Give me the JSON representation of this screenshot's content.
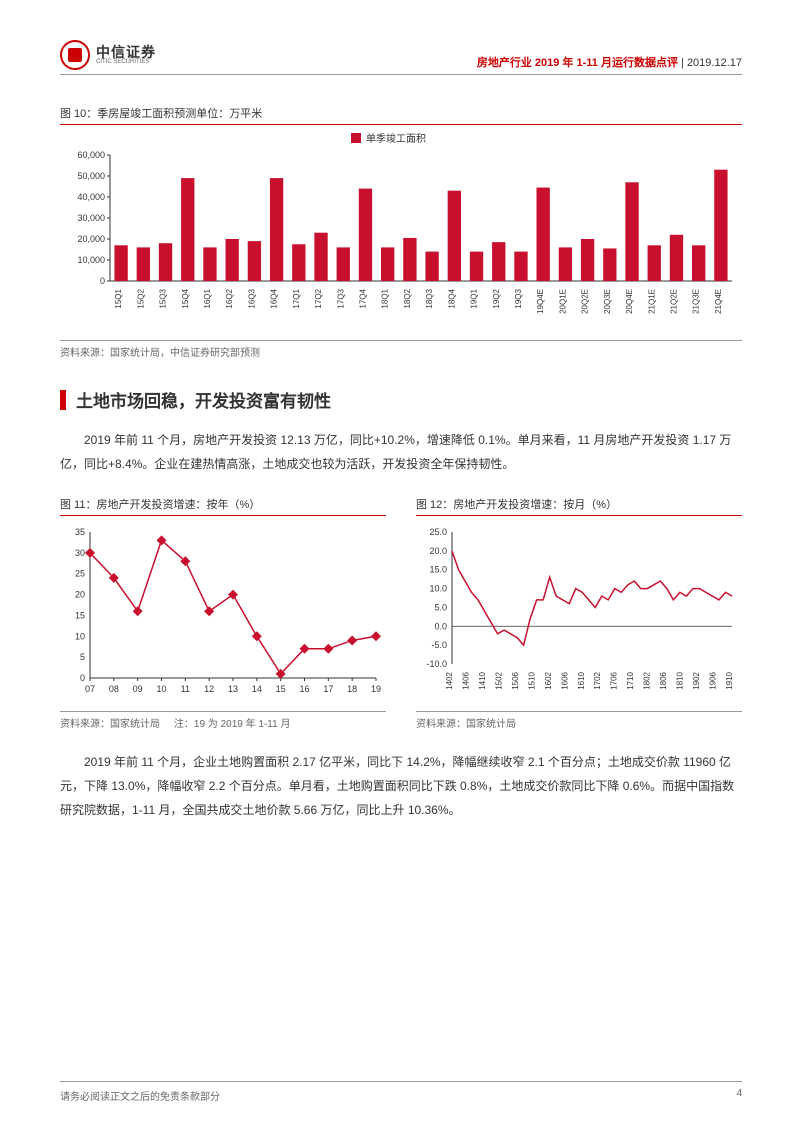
{
  "header": {
    "logo_cn": "中信证券",
    "logo_en": "CITIC SECURITIES",
    "title": "房地产行业 2019 年 1-11 月运行数据点评",
    "date": "2019.12.17"
  },
  "chart10": {
    "title": "图 10：季房屋竣工面积预测单位：万平米",
    "legend": "单季竣工面积",
    "source": "资料来源：国家统计局，中信证券研究部预测",
    "categories": [
      "15Q1",
      "15Q2",
      "15Q3",
      "15Q4",
      "16Q1",
      "16Q2",
      "16Q3",
      "16Q4",
      "17Q1",
      "17Q2",
      "17Q3",
      "17Q4",
      "18Q1",
      "18Q2",
      "18Q3",
      "18Q4",
      "19Q1",
      "19Q2",
      "19Q3",
      "19Q4E",
      "20Q1E",
      "20Q2E",
      "20Q3E",
      "20Q4E",
      "21Q1E",
      "21Q2E",
      "21Q3E",
      "21Q4E"
    ],
    "values": [
      17000,
      16000,
      18000,
      49000,
      16000,
      20000,
      19000,
      49000,
      17500,
      23000,
      16000,
      44000,
      16000,
      20500,
      14000,
      43000,
      14000,
      18500,
      14000,
      44500,
      16000,
      20000,
      15500,
      47000,
      17000,
      22000,
      17000,
      53000
    ],
    "ylim": [
      0,
      60000
    ],
    "ytick_step": 10000,
    "bar_color": "#c8102e",
    "axis_color": "#333333",
    "label_fontsize": 9
  },
  "section": {
    "title": "土地市场回稳，开发投资富有韧性"
  },
  "para1": "2019 年前 11 个月，房地产开发投资 12.13 万亿，同比+10.2%，增速降低 0.1%。单月来看，11 月房地产开发投资 1.17 万亿，同比+8.4%。企业在建热情高涨，土地成交也较为活跃，开发投资全年保持韧性。",
  "chart11": {
    "title": "图 11：房地产开发投资增速：按年（%）",
    "source": "资料来源：国家统计局",
    "note": "注：19 为 2019 年 1-11 月",
    "x": [
      "07",
      "08",
      "09",
      "10",
      "11",
      "12",
      "13",
      "14",
      "15",
      "16",
      "17",
      "18",
      "19"
    ],
    "y": [
      30,
      24,
      16,
      33,
      28,
      16,
      20,
      10,
      1,
      7,
      7,
      9,
      10
    ],
    "ylim": [
      0,
      35
    ],
    "ytick_step": 5,
    "line_color": "#c8102e",
    "marker": "diamond"
  },
  "chart12": {
    "title": "图 12：房地产开发投资增速：按月（%）",
    "source": "资料来源：国家统计局",
    "xlabels": [
      "1402",
      "1406",
      "1410",
      "1502",
      "1506",
      "1510",
      "1602",
      "1606",
      "1610",
      "1702",
      "1706",
      "1710",
      "1802",
      "1806",
      "1810",
      "1902",
      "1906",
      "1910"
    ],
    "y": [
      20,
      15,
      12,
      9,
      7,
      4,
      1,
      -2,
      -1,
      -2,
      -3,
      -5,
      2,
      7,
      7,
      13,
      8,
      7,
      6,
      10,
      9,
      7,
      5,
      8,
      7,
      10,
      9,
      11,
      12,
      10,
      10,
      11,
      12,
      10,
      7,
      9,
      8,
      10,
      10,
      9,
      8,
      7,
      9,
      8
    ],
    "ylim": [
      -10,
      25
    ],
    "yticks": [
      -10,
      -5,
      0,
      5,
      10,
      15,
      20,
      25
    ],
    "line_color": "#c8102e"
  },
  "para2": "2019 年前 11 个月，企业土地购置面积 2.17 亿平米，同比下 14.2%，降幅继续收窄 2.1 个百分点；土地成交价款 11960 亿元，下降 13.0%，降幅收窄 2.2 个百分点。单月看，土地购置面积同比下跌 0.8%，土地成交价款同比下降 0.6%。而据中国指数研究院数据，1-11 月，全国共成交土地价款 5.66 万亿，同比上升 10.36%。",
  "footer": {
    "disclaimer": "请务必阅读正文之后的免责条款部分",
    "page": "4"
  }
}
